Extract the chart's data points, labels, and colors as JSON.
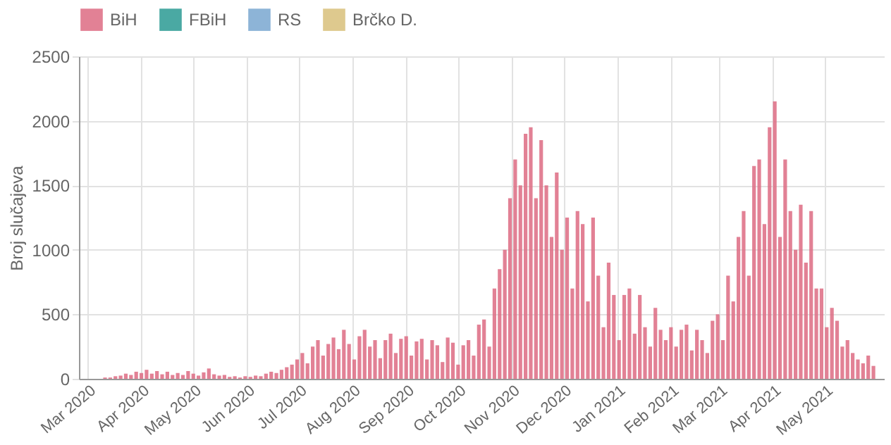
{
  "chart_data": {
    "type": "bar",
    "ylabel": "Broj slučajeva",
    "x": [
      "2020-03-05",
      "2020-03-08",
      "2020-03-11",
      "2020-03-14",
      "2020-03-17",
      "2020-03-20",
      "2020-03-23",
      "2020-03-26",
      "2020-03-29",
      "2020-04-01",
      "2020-04-04",
      "2020-04-07",
      "2020-04-10",
      "2020-04-13",
      "2020-04-16",
      "2020-04-19",
      "2020-04-22",
      "2020-04-25",
      "2020-04-28",
      "2020-05-01",
      "2020-05-04",
      "2020-05-07",
      "2020-05-10",
      "2020-05-13",
      "2020-05-16",
      "2020-05-19",
      "2020-05-22",
      "2020-05-25",
      "2020-05-28",
      "2020-05-31",
      "2020-06-03",
      "2020-06-06",
      "2020-06-09",
      "2020-06-12",
      "2020-06-15",
      "2020-06-18",
      "2020-06-21",
      "2020-06-24",
      "2020-06-27",
      "2020-06-30",
      "2020-07-03",
      "2020-07-06",
      "2020-07-09",
      "2020-07-12",
      "2020-07-15",
      "2020-07-18",
      "2020-07-21",
      "2020-07-24",
      "2020-07-27",
      "2020-07-30",
      "2020-08-02",
      "2020-08-05",
      "2020-08-08",
      "2020-08-11",
      "2020-08-14",
      "2020-08-17",
      "2020-08-20",
      "2020-08-23",
      "2020-08-26",
      "2020-08-29",
      "2020-09-01",
      "2020-09-04",
      "2020-09-07",
      "2020-09-10",
      "2020-09-13",
      "2020-09-16",
      "2020-09-19",
      "2020-09-22",
      "2020-09-25",
      "2020-09-28",
      "2020-10-01",
      "2020-10-04",
      "2020-10-07",
      "2020-10-10",
      "2020-10-13",
      "2020-10-16",
      "2020-10-19",
      "2020-10-22",
      "2020-10-25",
      "2020-10-28",
      "2020-10-31",
      "2020-11-03",
      "2020-11-06",
      "2020-11-09",
      "2020-11-12",
      "2020-11-15",
      "2020-11-18",
      "2020-11-21",
      "2020-11-24",
      "2020-11-27",
      "2020-11-30",
      "2020-12-03",
      "2020-12-06",
      "2020-12-09",
      "2020-12-12",
      "2020-12-15",
      "2020-12-18",
      "2020-12-21",
      "2020-12-24",
      "2020-12-27",
      "2020-12-30",
      "2021-01-02",
      "2021-01-05",
      "2021-01-08",
      "2021-01-11",
      "2021-01-14",
      "2021-01-17",
      "2021-01-20",
      "2021-01-23",
      "2021-01-26",
      "2021-01-29",
      "2021-02-01",
      "2021-02-04",
      "2021-02-07",
      "2021-02-10",
      "2021-02-13",
      "2021-02-16",
      "2021-02-19",
      "2021-02-22",
      "2021-02-25",
      "2021-02-28",
      "2021-03-03",
      "2021-03-06",
      "2021-03-09",
      "2021-03-12",
      "2021-03-15",
      "2021-03-18",
      "2021-03-21",
      "2021-03-24",
      "2021-03-27",
      "2021-03-30",
      "2021-04-02",
      "2021-04-05",
      "2021-04-08",
      "2021-04-11",
      "2021-04-14",
      "2021-04-17",
      "2021-04-20",
      "2021-04-23",
      "2021-04-26",
      "2021-04-29",
      "2021-05-02",
      "2021-05-05",
      "2021-05-08",
      "2021-05-11",
      "2021-05-14",
      "2021-05-17",
      "2021-05-20",
      "2021-05-23",
      "2021-05-26",
      "2021-05-29"
    ],
    "series": [
      {
        "name": "BiH",
        "color": "#dd6b82",
        "values": [
          0,
          0,
          10,
          10,
          20,
          25,
          40,
          30,
          55,
          45,
          70,
          40,
          60,
          35,
          55,
          30,
          45,
          30,
          60,
          40,
          25,
          50,
          80,
          35,
          25,
          30,
          15,
          20,
          10,
          20,
          15,
          25,
          20,
          40,
          55,
          45,
          70,
          90,
          110,
          150,
          200,
          120,
          250,
          300,
          180,
          270,
          320,
          230,
          380,
          270,
          150,
          330,
          380,
          250,
          300,
          160,
          300,
          350,
          200,
          310,
          330,
          180,
          290,
          310,
          150,
          300,
          260,
          130,
          320,
          280,
          110,
          260,
          300,
          180,
          420,
          460,
          250,
          700,
          850,
          1000,
          1400,
          1700,
          1500,
          1900,
          1950,
          1400,
          1850,
          1500,
          1100,
          1600,
          1000,
          1250,
          700,
          1300,
          1200,
          600,
          1250,
          800,
          400,
          900,
          650,
          300,
          650,
          700,
          350,
          650,
          400,
          250,
          550,
          380,
          300,
          400,
          250,
          380,
          420,
          220,
          380,
          300,
          200,
          450,
          500,
          300,
          800,
          600,
          1100,
          1300,
          800,
          1650,
          1700,
          1200,
          1950,
          2150,
          1100,
          1700,
          1300,
          1000,
          1350,
          900,
          1300,
          700,
          700,
          400,
          550,
          450,
          250,
          300,
          200,
          150,
          120,
          180,
          100
        ]
      },
      {
        "name": "FBiH",
        "color": "#2a9a93",
        "values": [
          null,
          null,
          null,
          null,
          null,
          null,
          null,
          null,
          null,
          null,
          null,
          null,
          null,
          null,
          null,
          null,
          null,
          null,
          null,
          null,
          null,
          null,
          null,
          null,
          null,
          null,
          null,
          null,
          null,
          null,
          null,
          null,
          null,
          null,
          null,
          null,
          null,
          null,
          null,
          null,
          null,
          null,
          null,
          null,
          null,
          null,
          null,
          null,
          null,
          null,
          null,
          null,
          null,
          null,
          null,
          null,
          null,
          null,
          null,
          null,
          null,
          null,
          null,
          null,
          null,
          null,
          null,
          null,
          null,
          null,
          null,
          null,
          null,
          null,
          null,
          null,
          null,
          null,
          null,
          null,
          null,
          null,
          null,
          null,
          null,
          null,
          null,
          null,
          null,
          null,
          null,
          null,
          null,
          null,
          null,
          null,
          null,
          null,
          null,
          null,
          null,
          null,
          null,
          null,
          null,
          null,
          null,
          null,
          null,
          null,
          null,
          null,
          null,
          null,
          null,
          null,
          null,
          null,
          null,
          null,
          null,
          null,
          null,
          null,
          null,
          null,
          null,
          null,
          null,
          null,
          null,
          null,
          null,
          null,
          null,
          null,
          null,
          null,
          null,
          null,
          null,
          null,
          null,
          null,
          null,
          null,
          null,
          null,
          null,
          null,
          null
        ]
      },
      {
        "name": "RS",
        "color": "#79a7d0",
        "values": [
          null,
          null,
          null,
          null,
          null,
          null,
          null,
          null,
          null,
          null,
          null,
          null,
          null,
          null,
          null,
          null,
          null,
          null,
          null,
          null,
          null,
          null,
          null,
          null,
          null,
          null,
          null,
          null,
          null,
          null,
          null,
          null,
          null,
          null,
          null,
          null,
          null,
          null,
          null,
          null,
          null,
          null,
          null,
          null,
          null,
          null,
          null,
          null,
          null,
          null,
          null,
          null,
          null,
          null,
          null,
          null,
          null,
          null,
          null,
          null,
          null,
          null,
          null,
          null,
          null,
          null,
          null,
          null,
          null,
          null,
          null,
          null,
          null,
          null,
          null,
          null,
          null,
          null,
          null,
          null,
          null,
          null,
          null,
          null,
          null,
          null,
          null,
          null,
          null,
          null,
          null,
          null,
          null,
          null,
          null,
          null,
          null,
          null,
          null,
          null,
          null,
          null,
          null,
          null,
          null,
          null,
          null,
          null,
          null,
          null,
          null,
          null,
          null,
          null,
          null,
          null,
          null,
          null,
          null,
          null,
          null,
          null,
          null,
          null,
          null,
          null,
          null,
          null,
          null,
          null,
          null,
          null,
          null,
          null,
          null,
          null,
          null,
          null,
          null,
          null,
          null,
          null,
          null,
          null,
          null,
          null,
          null,
          null,
          null,
          null,
          null
        ]
      },
      {
        "name": "Brčko D.",
        "color": "#d8c07a",
        "values": [
          null,
          null,
          null,
          null,
          null,
          null,
          null,
          null,
          null,
          null,
          null,
          null,
          null,
          null,
          null,
          null,
          null,
          null,
          null,
          null,
          null,
          null,
          null,
          null,
          null,
          null,
          null,
          null,
          null,
          null,
          null,
          null,
          null,
          null,
          null,
          null,
          null,
          null,
          null,
          null,
          null,
          null,
          null,
          null,
          null,
          null,
          null,
          null,
          null,
          null,
          null,
          null,
          null,
          null,
          null,
          null,
          null,
          null,
          null,
          null,
          null,
          null,
          null,
          null,
          null,
          null,
          null,
          null,
          null,
          null,
          null,
          null,
          null,
          null,
          null,
          null,
          null,
          null,
          null,
          null,
          null,
          null,
          null,
          null,
          null,
          null,
          null,
          null,
          null,
          null,
          null,
          null,
          null,
          null,
          null,
          null,
          null,
          null,
          null,
          null,
          null,
          null,
          null,
          null,
          null,
          null,
          null,
          null,
          null,
          null,
          null,
          null,
          null,
          null,
          null,
          null,
          null,
          null,
          null,
          null,
          null,
          null,
          null,
          null,
          null,
          null,
          null,
          null,
          null,
          null,
          null,
          null,
          null,
          null,
          null,
          null,
          null,
          null,
          null,
          null,
          null,
          null,
          null,
          null,
          null,
          null,
          null,
          null,
          null,
          null,
          null
        ]
      }
    ],
    "xlim": [
      "2020-02-29",
      "2021-05-31"
    ],
    "xticks": [
      {
        "value": "2020-03-01",
        "label": "Mar 2020"
      },
      {
        "value": "2020-04-01",
        "label": "Apr 2020"
      },
      {
        "value": "2020-05-01",
        "label": "May 2020"
      },
      {
        "value": "2020-06-01",
        "label": "Jun 2020"
      },
      {
        "value": "2020-07-01",
        "label": "Jul 2020"
      },
      {
        "value": "2020-08-01",
        "label": "Aug 2020"
      },
      {
        "value": "2020-09-01",
        "label": "Sep 2020"
      },
      {
        "value": "2020-10-01",
        "label": "Oct 2020"
      },
      {
        "value": "2020-11-01",
        "label": "Nov 2020"
      },
      {
        "value": "2020-12-01",
        "label": "Dec 2020"
      },
      {
        "value": "2021-01-01",
        "label": "Jan 2021"
      },
      {
        "value": "2021-02-01",
        "label": "Feb 2021"
      },
      {
        "value": "2021-03-01",
        "label": "Mar 2021"
      },
      {
        "value": "2021-04-01",
        "label": "Apr 2021"
      },
      {
        "value": "2021-05-01",
        "label": "May 2021"
      }
    ],
    "ylim": [
      0,
      2500
    ],
    "yticks": [
      0,
      500,
      1000,
      1500,
      2000,
      2500
    ],
    "grid": true,
    "legend": "top"
  }
}
